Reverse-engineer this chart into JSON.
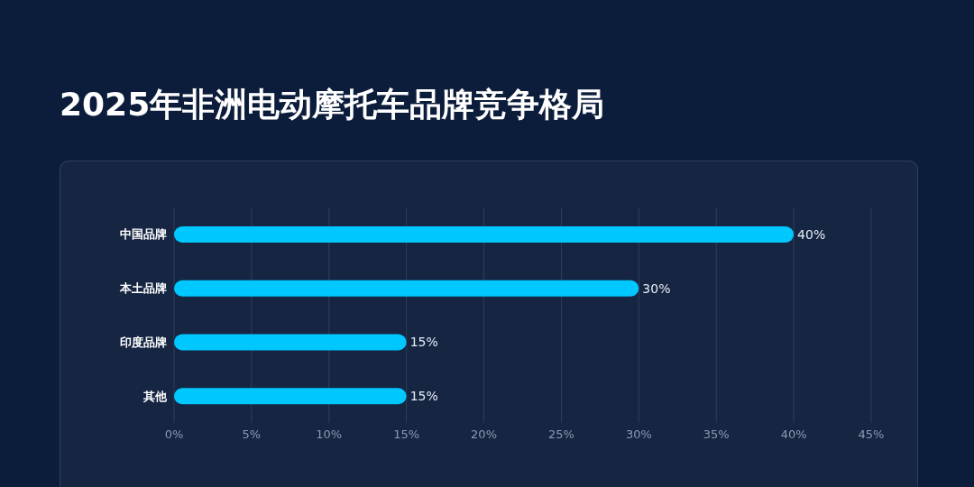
{
  "chart_data": {
    "type": "bar",
    "title": "2025年非洲电动摩托车品牌竞争格局",
    "orientation": "horizontal",
    "categories": [
      "中国品牌",
      "本土品牌",
      "印度品牌",
      "其他"
    ],
    "values": [
      40,
      30,
      15,
      15
    ],
    "value_labels": [
      "40%",
      "30%",
      "15%",
      "15%"
    ],
    "color": "#00c8ff",
    "xlim": [
      0,
      45
    ],
    "xticks": [
      {
        "value": 0,
        "label": "0%"
      },
      {
        "value": 5,
        "label": "5%"
      },
      {
        "value": 10,
        "label": "10%"
      },
      {
        "value": 15,
        "label": "15%"
      },
      {
        "value": 20,
        "label": "20%"
      },
      {
        "value": 25,
        "label": "25%"
      },
      {
        "value": 30,
        "label": "30%"
      },
      {
        "value": 35,
        "label": "35%"
      },
      {
        "value": 40,
        "label": "40%"
      },
      {
        "value": 45,
        "label": "45%"
      }
    ],
    "grid": "x",
    "legend": false
  }
}
